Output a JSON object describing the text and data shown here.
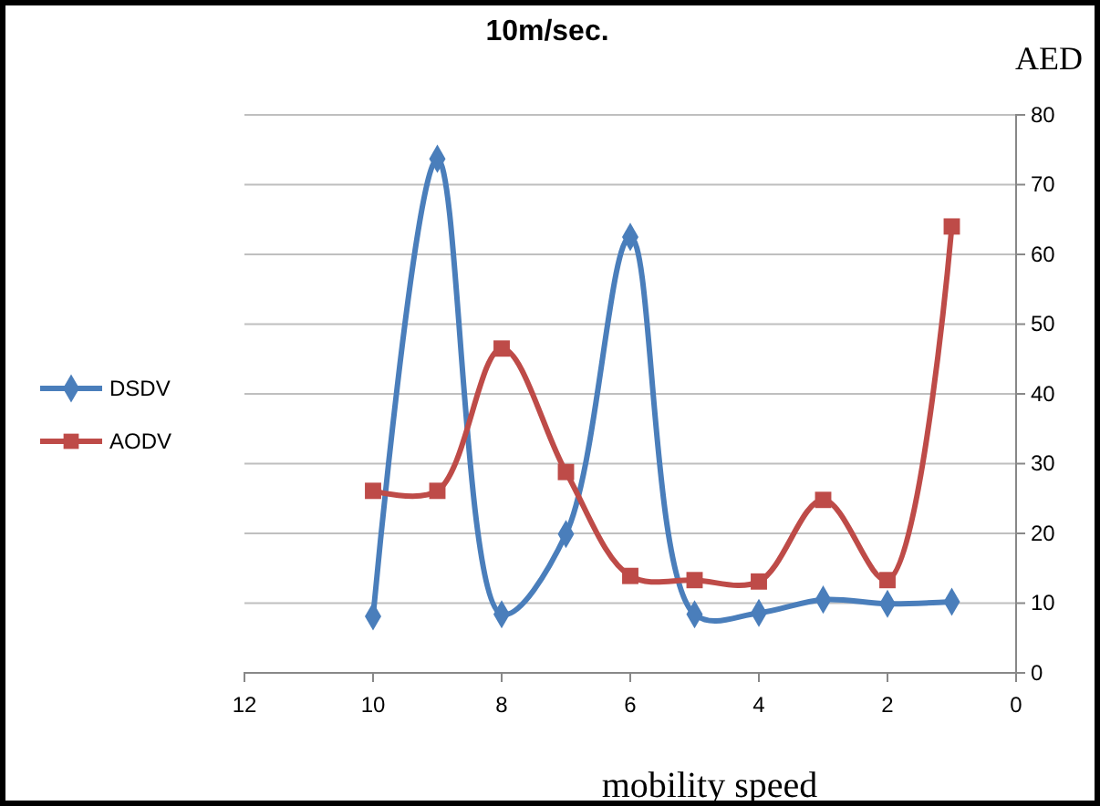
{
  "chart_data": {
    "type": "line",
    "title": "10m/sec.",
    "xlabel": "mobility speed",
    "ylabel": "AED",
    "x": [
      10,
      9,
      8,
      7,
      6,
      5,
      4,
      3,
      2,
      1
    ],
    "series": [
      {
        "name": "DSDV",
        "color": "#4a7ebb",
        "marker": "diamond",
        "values": [
          8.1,
          73.7,
          8.4,
          19.9,
          62.5,
          8.4,
          8.6,
          10.5,
          9.9,
          10.2
        ]
      },
      {
        "name": "AODV",
        "color": "#be4b48",
        "marker": "square",
        "values": [
          26.1,
          26.1,
          46.5,
          28.8,
          13.9,
          13.3,
          13.1,
          24.8,
          13.3,
          64
        ]
      }
    ],
    "xlim": [
      12,
      0
    ],
    "xticks": [
      12,
      10,
      8,
      6,
      4,
      2,
      0
    ],
    "ylim": [
      0,
      80
    ],
    "yticks": [
      0,
      10,
      20,
      30,
      40,
      50,
      60,
      70,
      80
    ],
    "grid": "y",
    "legend": "left"
  }
}
